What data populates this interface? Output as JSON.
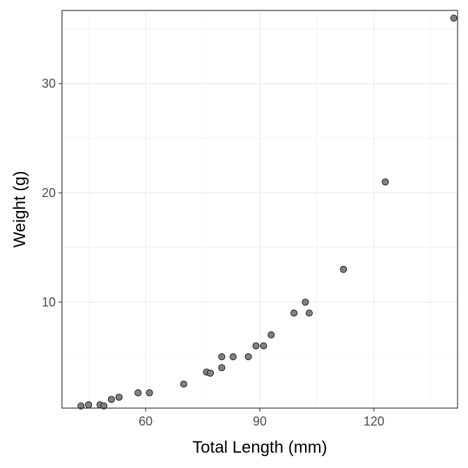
{
  "chart_data": {
    "type": "scatter",
    "title": "",
    "xlabel": "Total Length (mm)",
    "ylabel": "Weight (g)",
    "xlim": [
      38,
      142
    ],
    "ylim": [
      0.3,
      36.7
    ],
    "x_ticks": [
      60,
      90,
      120
    ],
    "y_ticks": [
      10,
      20,
      30
    ],
    "x_tick_labels": [
      "60",
      "90",
      "120"
    ],
    "y_tick_labels": [
      "10",
      "20",
      "30"
    ],
    "grid": true,
    "points": [
      {
        "x": 43,
        "y": 0.5
      },
      {
        "x": 45,
        "y": 0.6
      },
      {
        "x": 48,
        "y": 0.6
      },
      {
        "x": 49,
        "y": 0.5
      },
      {
        "x": 51,
        "y": 1.1
      },
      {
        "x": 53,
        "y": 1.3
      },
      {
        "x": 58,
        "y": 1.7
      },
      {
        "x": 61,
        "y": 1.7
      },
      {
        "x": 70,
        "y": 2.5
      },
      {
        "x": 76,
        "y": 3.6
      },
      {
        "x": 77,
        "y": 3.5
      },
      {
        "x": 80,
        "y": 4.0
      },
      {
        "x": 80,
        "y": 5.0
      },
      {
        "x": 83,
        "y": 5.0
      },
      {
        "x": 87,
        "y": 5.0
      },
      {
        "x": 89,
        "y": 6.0
      },
      {
        "x": 91,
        "y": 6.0
      },
      {
        "x": 93,
        "y": 7.0
      },
      {
        "x": 99,
        "y": 9.0
      },
      {
        "x": 102,
        "y": 10.0
      },
      {
        "x": 103,
        "y": 9.0
      },
      {
        "x": 112,
        "y": 13.0
      },
      {
        "x": 123,
        "y": 21.0
      },
      {
        "x": 141,
        "y": 36.0
      }
    ],
    "colors": {
      "point_fill": "#808080",
      "point_stroke": "#000000",
      "grid_major": "#ebebeb",
      "grid_minor": "#f2f2f2",
      "panel_border": "#333333"
    }
  }
}
